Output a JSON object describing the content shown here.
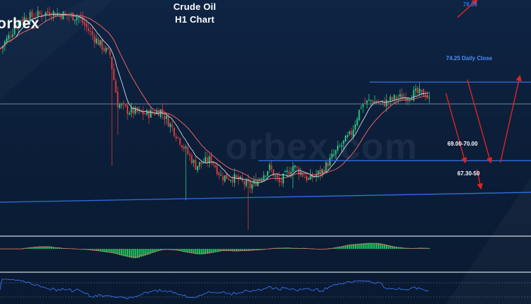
{
  "header": {
    "title_line1": "Crude Oil",
    "title_line2": "H1 Chart",
    "brand": "orbex",
    "watermark": "orbex.com"
  },
  "labels": {
    "target_top": "78.00",
    "daily_close": "74.25 Daily Close",
    "support_zone": "69.00-70.00",
    "lower_support": "67.30-50"
  },
  "colors": {
    "background": "#0b1d37",
    "bullish": "#2ec27e",
    "bearish": "#d63a3a",
    "level_line": "#2f6fe0",
    "arrow": "#e02424",
    "ma_fast": "#cfd8e6",
    "ma_slow": "#ff6a6a",
    "macd_hist": "#22c55e"
  },
  "chart_data": {
    "type": "candlestick",
    "instrument": "Crude Oil",
    "timeframe": "H1",
    "ylim": [
      65.5,
      79.0
    ],
    "levels": [
      {
        "label": "74.25 Daily Close",
        "value": 74.25,
        "style": "horizontal-line"
      },
      {
        "label": "69.00-70.00",
        "value": 69.7,
        "style": "horizontal-line"
      },
      {
        "value": 73.1,
        "style": "horizontal-line"
      }
    ],
    "trendline": {
      "from": [
        0,
        67.3
      ],
      "to": [
        220,
        67.75
      ]
    },
    "close_anchors": [
      [
        0,
        76.2
      ],
      [
        10,
        77.9
      ],
      [
        25,
        78.3
      ],
      [
        40,
        78.0
      ],
      [
        48,
        76.8
      ],
      [
        56,
        75.8
      ],
      [
        60,
        73.0
      ],
      [
        65,
        72.6
      ],
      [
        75,
        72.4
      ],
      [
        82,
        72.6
      ],
      [
        88,
        71.6
      ],
      [
        95,
        70.3
      ],
      [
        100,
        69.4
      ],
      [
        108,
        69.8
      ],
      [
        113,
        68.8
      ],
      [
        120,
        68.7
      ],
      [
        128,
        68.2
      ],
      [
        132,
        68.6
      ],
      [
        138,
        69.3
      ],
      [
        143,
        68.4
      ],
      [
        150,
        69.4
      ],
      [
        158,
        68.6
      ],
      [
        165,
        69.1
      ],
      [
        172,
        70.2
      ],
      [
        180,
        71.3
      ],
      [
        185,
        72.9
      ],
      [
        190,
        73.2
      ],
      [
        196,
        73.0
      ],
      [
        202,
        73.3
      ],
      [
        207,
        73.4
      ],
      [
        213,
        73.6
      ],
      [
        218,
        73.6
      ],
      [
        220,
        73.2
      ]
    ],
    "projection_arrows": [
      {
        "from": [
          235,
          78.0
        ],
        "to": [
          245,
          79.0
        ],
        "label": "78.00"
      },
      {
        "from": [
          229,
          73.6
        ],
        "to": [
          239,
          69.6
        ]
      },
      {
        "from": [
          240,
          74.4
        ],
        "to": [
          252,
          69.6
        ]
      },
      {
        "from": [
          257,
          69.6
        ],
        "to": [
          267,
          74.6
        ]
      },
      {
        "from": [
          245,
          69.2
        ],
        "to": [
          247,
          68.1
        ],
        "label": "67.30-50"
      }
    ],
    "indicators": [
      "EMA",
      "SMA",
      "MACD",
      "RSI"
    ]
  }
}
